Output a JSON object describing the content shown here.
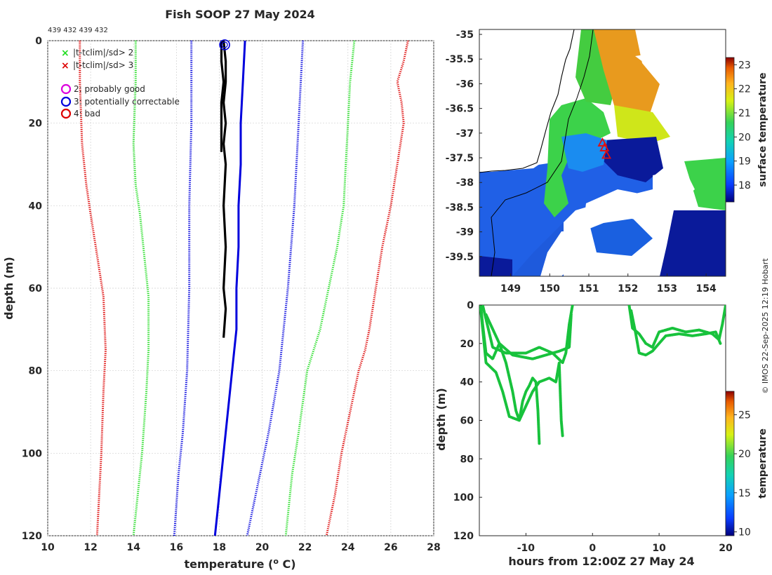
{
  "figure": {
    "title": "Fish SOOP 27 May 2024",
    "ids_text": "439 432 439 432",
    "credit": "© IMOS 22-Sep-2025 12:19 Hobart"
  },
  "legend": {
    "markers": [
      {
        "symbol": "×",
        "color": "#22dd22",
        "label": "|t-tclim|/sd> 2"
      },
      {
        "symbol": "×",
        "color": "#dd0000",
        "label": "|t-tclim|/sd> 3"
      }
    ],
    "flags": [
      {
        "color": "#dd00dd",
        "label": "2: probably good"
      },
      {
        "color": "#0000dd",
        "label": "3: potentially correctable"
      },
      {
        "color": "#dd0000",
        "label": "4: bad"
      }
    ]
  },
  "chart_data": [
    {
      "type": "line",
      "id": "profile",
      "title": "Fish SOOP 27 May 2024",
      "xlabel": "temperature (°C)",
      "ylabel": "depth (m)",
      "xlim": [
        10,
        28
      ],
      "ylim": [
        0,
        120
      ],
      "y_inverted": true,
      "grid": true,
      "xticks": [
        10,
        12,
        14,
        16,
        18,
        20,
        22,
        24,
        26,
        28
      ],
      "yticks": [
        0,
        20,
        40,
        60,
        80,
        100,
        120
      ],
      "series": [
        {
          "name": "climatology -3sd",
          "color": "#dd0000",
          "style": "dotted",
          "points": [
            [
              11.5,
              0
            ],
            [
              11.5,
              10
            ],
            [
              11.6,
              25
            ],
            [
              11.8,
              35
            ],
            [
              12.0,
              42
            ],
            [
              12.3,
              52
            ],
            [
              12.6,
              62
            ],
            [
              12.7,
              75
            ],
            [
              12.6,
              85
            ],
            [
              12.5,
              100
            ],
            [
              12.3,
              120
            ]
          ]
        },
        {
          "name": "climatology -2sd",
          "color": "#22dd22",
          "style": "dotted",
          "points": [
            [
              14.1,
              0
            ],
            [
              14.1,
              10
            ],
            [
              14.0,
              25
            ],
            [
              14.1,
              35
            ],
            [
              14.3,
              42
            ],
            [
              14.5,
              52
            ],
            [
              14.7,
              62
            ],
            [
              14.7,
              75
            ],
            [
              14.6,
              85
            ],
            [
              14.4,
              100
            ],
            [
              14.0,
              120
            ]
          ]
        },
        {
          "name": "climatology mean -sd",
          "color": "#0000dd",
          "style": "dotted",
          "points": [
            [
              16.7,
              0
            ],
            [
              16.7,
              20
            ],
            [
              16.6,
              40
            ],
            [
              16.6,
              60
            ],
            [
              16.5,
              80
            ],
            [
              16.3,
              95
            ],
            [
              16.1,
              105
            ],
            [
              15.9,
              120
            ]
          ]
        },
        {
          "name": "climatology +sd",
          "color": "#0000dd",
          "style": "dotted",
          "points": [
            [
              21.9,
              0
            ],
            [
              21.7,
              20
            ],
            [
              21.5,
              40
            ],
            [
              21.2,
              60
            ],
            [
              20.8,
              80
            ],
            [
              20.3,
              95
            ],
            [
              19.9,
              105
            ],
            [
              19.3,
              120
            ]
          ]
        },
        {
          "name": "climatology +2sd",
          "color": "#22dd22",
          "style": "dotted",
          "points": [
            [
              24.3,
              0
            ],
            [
              24.1,
              10
            ],
            [
              24.0,
              20
            ],
            [
              23.9,
              30
            ],
            [
              23.8,
              40
            ],
            [
              23.5,
              50
            ],
            [
              23.1,
              60
            ],
            [
              22.7,
              70
            ],
            [
              22.1,
              80
            ],
            [
              21.7,
              95
            ],
            [
              21.4,
              105
            ],
            [
              21.1,
              120
            ]
          ]
        },
        {
          "name": "climatology +3sd",
          "color": "#dd0000",
          "style": "dotted",
          "points": [
            [
              26.8,
              0
            ],
            [
              26.6,
              5
            ],
            [
              26.3,
              10
            ],
            [
              26.5,
              15
            ],
            [
              26.6,
              20
            ],
            [
              26.3,
              30
            ],
            [
              26.0,
              40
            ],
            [
              25.6,
              50
            ],
            [
              25.3,
              60
            ],
            [
              25.0,
              70
            ],
            [
              24.8,
              75
            ],
            [
              24.5,
              80
            ],
            [
              24.1,
              90
            ],
            [
              23.7,
              100
            ],
            [
              23.4,
              110
            ],
            [
              23.0,
              120
            ]
          ]
        },
        {
          "name": "climatology mean",
          "color": "#0000dd",
          "style": "solid",
          "points": [
            [
              19.2,
              0
            ],
            [
              19.1,
              10
            ],
            [
              19.0,
              20
            ],
            [
              19.0,
              30
            ],
            [
              18.9,
              40
            ],
            [
              18.9,
              50
            ],
            [
              18.8,
              60
            ],
            [
              18.8,
              70
            ],
            [
              18.7,
              75
            ],
            [
              18.5,
              85
            ],
            [
              18.3,
              95
            ],
            [
              18.1,
              105
            ],
            [
              17.9,
              115
            ],
            [
              17.8,
              120
            ]
          ]
        },
        {
          "name": "observed profile 1",
          "color": "#000000",
          "style": "solid",
          "points": [
            [
              18.2,
              0
            ],
            [
              18.3,
              5
            ],
            [
              18.3,
              10
            ],
            [
              18.2,
              15
            ],
            [
              18.3,
              20
            ],
            [
              18.2,
              25
            ],
            [
              18.3,
              30
            ],
            [
              18.2,
              40
            ],
            [
              18.3,
              50
            ],
            [
              18.2,
              60
            ],
            [
              18.3,
              65
            ],
            [
              18.2,
              72
            ]
          ]
        },
        {
          "name": "observed profile 2",
          "color": "#000000",
          "style": "solid",
          "points": [
            [
              18.1,
              0
            ],
            [
              18.1,
              5
            ],
            [
              18.2,
              10
            ],
            [
              18.1,
              15
            ],
            [
              18.1,
              20
            ],
            [
              18.1,
              27
            ]
          ]
        }
      ],
      "markers": [
        {
          "x": 18.25,
          "y": 1,
          "color": "#0000dd",
          "flag": "3: potentially correctable"
        }
      ]
    },
    {
      "type": "heatmap",
      "id": "sst_map",
      "xlabel": "",
      "ylabel": "",
      "xlim": [
        148.2,
        154.5
      ],
      "ylim": [
        -39.9,
        -34.9
      ],
      "xticks": [
        149,
        150,
        151,
        152,
        153,
        154
      ],
      "yticks": [
        -35,
        -35.5,
        -36,
        -36.5,
        -37,
        -37.5,
        -38,
        -38.5,
        -39,
        -39.5
      ],
      "colorbar": {
        "label": "surface temperature",
        "range": [
          17.3,
          23.3
        ],
        "ticks": [
          18,
          19,
          20,
          21,
          22,
          23
        ]
      },
      "ship_positions": [
        [
          151.4,
          -37.3
        ],
        [
          151.45,
          -37.45
        ],
        [
          151.35,
          -37.2
        ]
      ]
    },
    {
      "type": "scatter",
      "id": "depth_time",
      "xlabel": "hours from 12:00Z 27 May 24",
      "ylabel": "depth (m)",
      "xlim": [
        -17,
        20
      ],
      "ylim": [
        0,
        120
      ],
      "y_inverted": true,
      "xticks": [
        -10,
        0,
        10,
        20
      ],
      "yticks": [
        0,
        20,
        40,
        60,
        80,
        100,
        120
      ],
      "colorbar": {
        "label": "temperature",
        "range": [
          9.5,
          28
        ],
        "ticks": [
          10,
          15,
          20,
          25
        ]
      },
      "tracks": [
        {
          "points": [
            [
              -16.8,
              0
            ],
            [
              -16.5,
              10
            ],
            [
              -16.0,
              25
            ],
            [
              -15.0,
              28
            ],
            [
              -14.0,
              20
            ],
            [
              -13.0,
              30
            ],
            [
              -12.0,
              45
            ],
            [
              -11.5,
              55
            ],
            [
              -11.0,
              60
            ],
            [
              -10.5,
              50
            ],
            [
              -10.0,
              45
            ],
            [
              -9.5,
              42
            ],
            [
              -9.0,
              38
            ],
            [
              -8.5,
              40
            ],
            [
              -8.2,
              55
            ],
            [
              -8.0,
              72
            ]
          ]
        },
        {
          "points": [
            [
              -16.8,
              2
            ],
            [
              -16.0,
              30
            ],
            [
              -14.5,
              35
            ],
            [
              -13.5,
              45
            ],
            [
              -12.5,
              58
            ],
            [
              -11.0,
              60
            ],
            [
              -9.0,
              45
            ],
            [
              -8.0,
              40
            ],
            [
              -6.5,
              38
            ],
            [
              -5.5,
              40
            ],
            [
              -5.0,
              30
            ],
            [
              -4.7,
              60
            ],
            [
              -4.5,
              68
            ]
          ]
        },
        {
          "points": [
            [
              -16.5,
              0
            ],
            [
              -15.0,
              22
            ],
            [
              -13.0,
              25
            ],
            [
              -10.0,
              25
            ],
            [
              -8.0,
              22
            ],
            [
              -6.0,
              25
            ],
            [
              -4.5,
              30
            ],
            [
              -4.0,
              25
            ],
            [
              -3.5,
              10
            ],
            [
              -3.0,
              0
            ]
          ]
        },
        {
          "points": [
            [
              -16.0,
              5
            ],
            [
              -14.0,
              20
            ],
            [
              -12.0,
              26
            ],
            [
              -9.0,
              28
            ],
            [
              -7.0,
              26
            ],
            [
              -5.0,
              24
            ],
            [
              -3.5,
              22
            ],
            [
              -3.2,
              5
            ]
          ]
        },
        {
          "points": [
            [
              5.5,
              0
            ],
            [
              6.0,
              12
            ],
            [
              7.0,
              15
            ],
            [
              8.0,
              20
            ],
            [
              9.0,
              22
            ],
            [
              10.0,
              14
            ],
            [
              12.0,
              12
            ],
            [
              14.0,
              14
            ],
            [
              16.0,
              13
            ],
            [
              18.0,
              15
            ],
            [
              19.0,
              18
            ],
            [
              19.5,
              10
            ],
            [
              20.0,
              0
            ]
          ]
        },
        {
          "points": [
            [
              5.8,
              3
            ],
            [
              6.5,
              15
            ],
            [
              7.0,
              25
            ],
            [
              8.0,
              26
            ],
            [
              9.0,
              24
            ],
            [
              10.0,
              20
            ],
            [
              11.0,
              16
            ],
            [
              13.0,
              15
            ],
            [
              15.0,
              16
            ],
            [
              17.0,
              15
            ],
            [
              18.5,
              14
            ],
            [
              19.2,
              20
            ]
          ]
        }
      ]
    }
  ]
}
